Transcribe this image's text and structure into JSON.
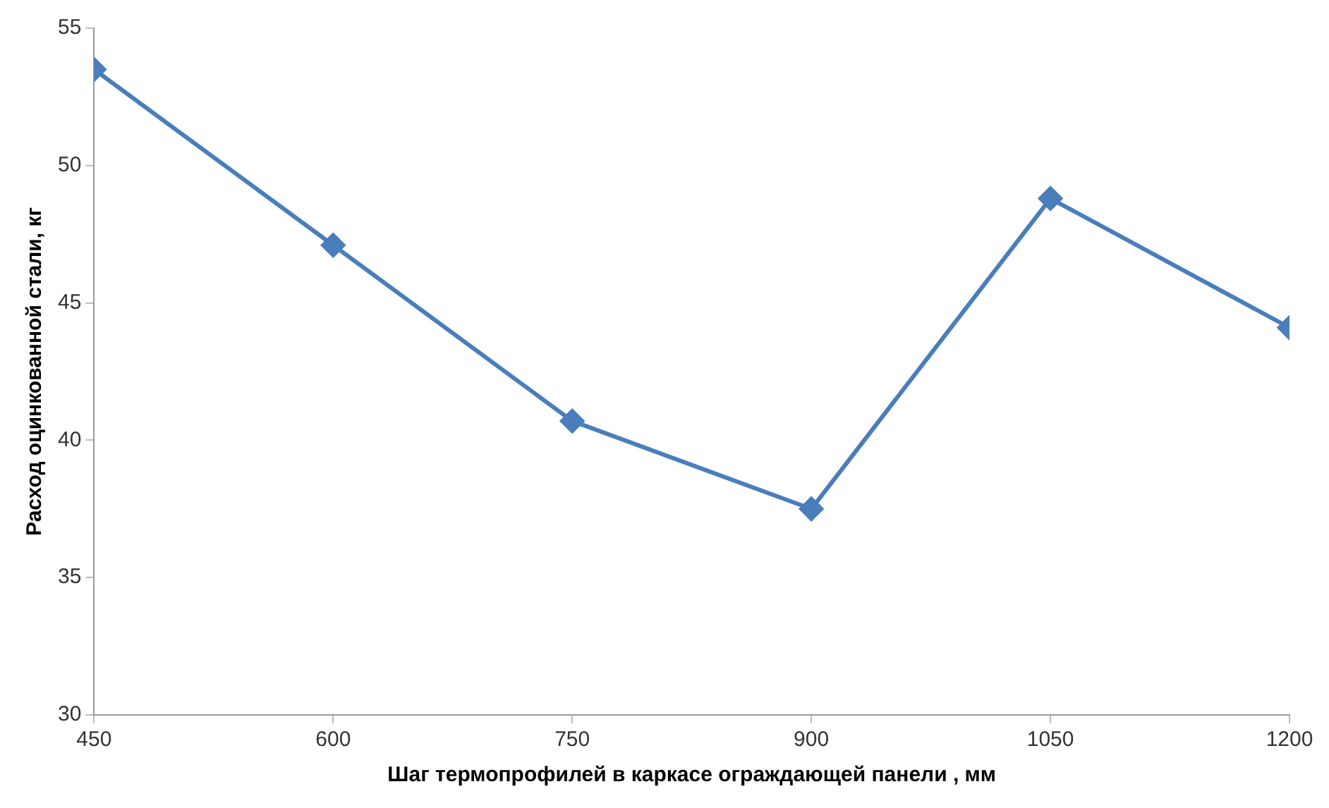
{
  "chart_data": {
    "type": "line",
    "xlabel": "Шаг термопрофилей в каркасе ограждающей панели , мм",
    "ylabel": "Расход оцинкованной стали, кг",
    "x": [
      450,
      600,
      750,
      900,
      1050,
      1200
    ],
    "series": [
      {
        "color": "#4a7ebb",
        "values": [
          53.5,
          47.1,
          40.7,
          37.5,
          48.8,
          44.1
        ]
      }
    ],
    "xlim": [
      450,
      1200
    ],
    "xticks": [
      450,
      600,
      750,
      900,
      1050,
      1200
    ],
    "ylim": [
      30,
      55
    ],
    "yticks": [
      30,
      35,
      40,
      45,
      50,
      55
    ],
    "grid": false,
    "legend": false,
    "marker": "diamond",
    "line_style": "solid"
  }
}
